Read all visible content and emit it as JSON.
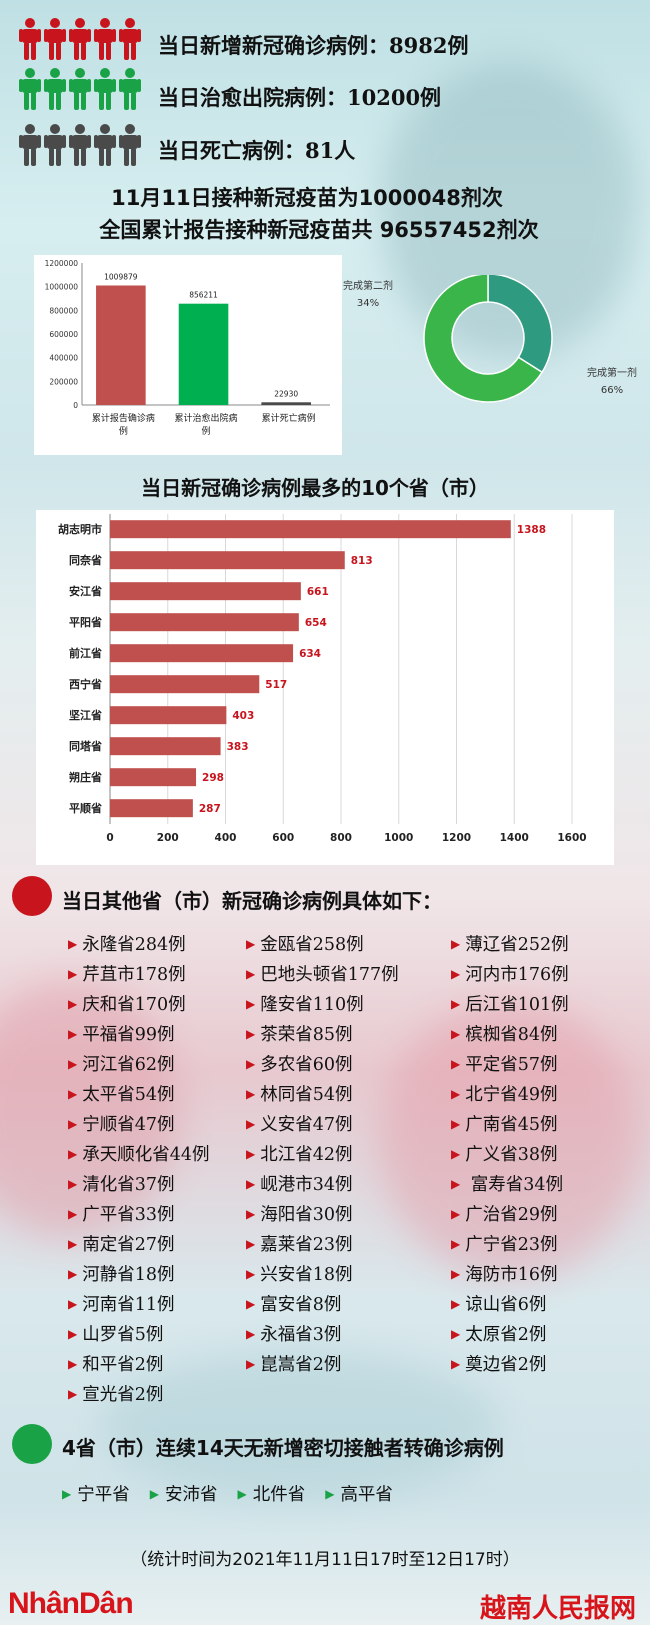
{
  "colors": {
    "red": "#c8141d",
    "green": "#1aa246",
    "gray": "#4a4a4a",
    "bar_red": "#c0504d",
    "donut_teal": "#2e9a7f",
    "donut_green": "#3ab54a"
  },
  "stats": [
    {
      "icon": "red-people-icon",
      "color": "#c8141d",
      "text": "当日新增新冠确诊病例：8982例"
    },
    {
      "icon": "green-people-icon",
      "color": "#1aa246",
      "text": "当日治愈出院病例：10200例"
    },
    {
      "icon": "gray-people-icon",
      "color": "#4a4a4a",
      "text": "当日死亡病例：81人"
    }
  ],
  "vaccine": {
    "line1": "11月11日接种新冠疫苗为1000048剂次",
    "line2": "全国累计报告接种新冠疫苗共 96557452剂次"
  },
  "chart_data": [
    {
      "type": "bar",
      "categories": [
        "累计报告确诊病例",
        "累计治愈出院病例",
        "累计死亡病例"
      ],
      "values": [
        1009879,
        856211,
        22930
      ],
      "ylim": [
        0,
        1200000
      ],
      "yticks": [
        0,
        200000,
        400000,
        600000,
        800000,
        1000000,
        1200000
      ],
      "colors": [
        "#c0504d",
        "#00b050",
        "#4a4a4a"
      ],
      "grid": false,
      "title": "",
      "xlabel": "",
      "ylabel": ""
    },
    {
      "type": "pie",
      "labels": [
        "完成第二剂",
        "完成第一剂"
      ],
      "values": [
        34,
        66
      ],
      "value_labels": [
        "34%",
        "66%"
      ],
      "colors": [
        "#2e9a7f",
        "#3ab54a"
      ],
      "donut": true
    },
    {
      "type": "bar",
      "orientation": "horizontal",
      "title": "当日新冠确诊病例最多的10个省（市）",
      "categories": [
        "胡志明市",
        "同奈省",
        "安江省",
        "平阳省",
        "前江省",
        "西宁省",
        "坚江省",
        "同塔省",
        "朔庄省",
        "平顺省"
      ],
      "values": [
        1388,
        813,
        661,
        654,
        634,
        517,
        403,
        383,
        298,
        287
      ],
      "xlim": [
        0,
        1600
      ],
      "xticks": [
        0,
        200,
        400,
        600,
        800,
        1000,
        1200,
        1400,
        1600
      ],
      "grid": true,
      "color": "#c0504d"
    }
  ],
  "other": {
    "title": "当日其他省（市）新冠确诊病例具体如下：",
    "items": [
      "永隆省284例",
      "金瓯省258例",
      "薄辽省252例",
      "芹苴市178例",
      "巴地头顿省177例",
      "河内市176例",
      "庆和省170例",
      "隆安省110例",
      "后江省101例",
      "平福省99例",
      "茶荣省85例",
      "槟椥省84例",
      "河江省62例",
      "多农省60例",
      "平定省57例",
      "太平省54例",
      "林同省54例",
      "北宁省49例",
      "宁顺省47例",
      "义安省47例",
      "广南省45例",
      "承天顺化省44例",
      "北江省42例",
      "广义省38例",
      "清化省37例",
      "岘港市34例",
      " 富寿省34例",
      "广平省33例",
      "海阳省30例",
      "广治省29例",
      "南定省27例",
      "嘉莱省23例",
      "广宁省23例",
      "河静省18例",
      "兴安省18例",
      "海防市16例",
      "河南省11例",
      "富安省8例",
      "谅山省6例",
      "山罗省5例",
      "永福省3例",
      "太原省2例",
      "和平省2例",
      "崑嵩省2例",
      "奠边省2例",
      "宣光省2例"
    ]
  },
  "no_new": {
    "title": "4省（市）连续14天无新增密切接触者转确诊病例",
    "items": [
      "宁平省",
      "安沛省",
      "北件省",
      "高平省"
    ]
  },
  "footer": "（统计时间为2021年11月11日17时至12日17时）",
  "logo_left": "NhânDân",
  "logo_right": "越南人民报网"
}
